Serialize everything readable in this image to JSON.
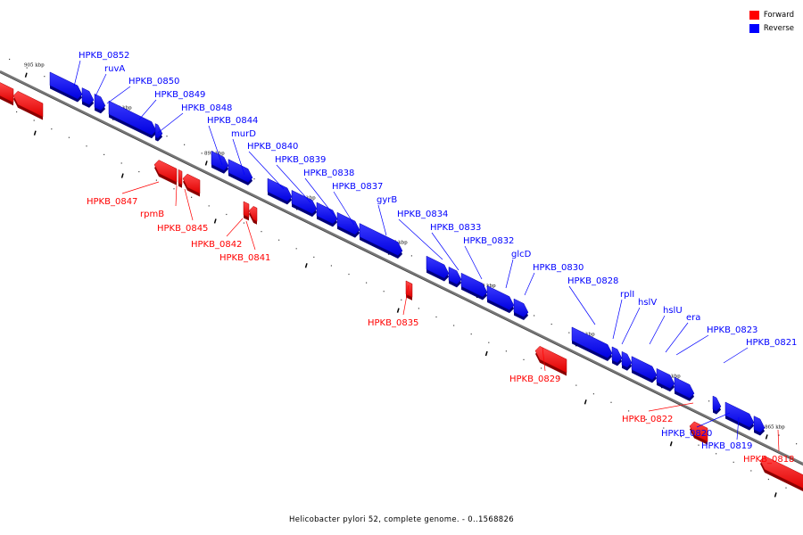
{
  "legend": [
    {
      "label": "Forward",
      "color": "#ff0000"
    },
    {
      "label": "Reverse",
      "color": "#0000ff"
    }
  ],
  "caption": "Helicobacter pylori 52, complete genome. - 0..1568826",
  "colors": {
    "forward": "#ff0000",
    "reverse": "#0000ff",
    "axis": "#777777",
    "ticks": "#000000"
  },
  "scale_labels": [
    "905 kbp",
    "900 kbp",
    "895 kbp",
    "890 kbp",
    "885 kbp",
    "880 kbp",
    "875 kbp",
    "870 kbp",
    "865 kbp"
  ],
  "genes_reverse": [
    "HPKB_0852",
    "ruvA",
    "HPKB_0850",
    "HPKB_0849",
    "HPKB_0848",
    "HPKB_0844",
    "murD",
    "HPKB_0840",
    "HPKB_0839",
    "HPKB_0838",
    "HPKB_0837",
    "gyrB",
    "HPKB_0834",
    "HPKB_0833",
    "HPKB_0832",
    "glcD",
    "HPKB_0830",
    "HPKB_0828",
    "rplI",
    "hslV",
    "hslU",
    "era",
    "HPKB_0823",
    "HPKB_0821",
    "HPKB_0820",
    "HPKB_0819"
  ],
  "genes_forward": [
    "HPKB_0847",
    "rpmB",
    "HPKB_0845",
    "HPKB_0842",
    "HPKB_0841",
    "HPKB_0835",
    "HPKB_0829",
    "HPKB_0822",
    "HPKB_0818"
  ]
}
